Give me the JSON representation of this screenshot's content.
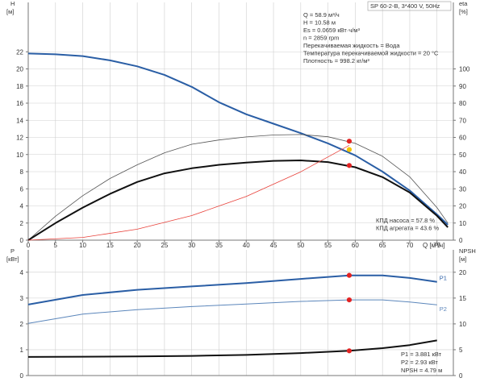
{
  "chart_data": [
    {
      "type": "line",
      "title": "SP 60-2-B, 3*400 V, 50Hz",
      "left_axis_label": "H",
      "left_axis_unit": "[м]",
      "right_axis_label": "eta",
      "right_axis_unit": "[%]",
      "x_axis_label": "Q [м³/ч]",
      "x_ticks": [
        0,
        5,
        10,
        15,
        20,
        25,
        30,
        35,
        40,
        45,
        50,
        55,
        60,
        65,
        70,
        75
      ],
      "xlim": [
        0,
        78
      ],
      "left_ticks": [
        0,
        2,
        4,
        6,
        8,
        10,
        12,
        14,
        16,
        18,
        20,
        22
      ],
      "ylim": [
        0,
        24
      ],
      "right_ticks": [
        0,
        10,
        20,
        30,
        40,
        50,
        60,
        70,
        80,
        90,
        100
      ],
      "right_ylim": [
        0,
        120
      ],
      "grid": true,
      "operating_info": [
        "Q = 58.9 м³/ч",
        "H = 10.58 м",
        "Es = 0.0659 кВт·ч/м³",
        "n = 2859 rpm",
        "Перекачиваемая жидкость = Вода",
        "Температура перекачиваемой жидкости = 20 °C",
        "Плотность = 998.2 кг/м³"
      ],
      "efficiency_info": [
        "КПД насоса = 57.8 %",
        "КПД агрегата = 43.6 %"
      ],
      "series": [
        {
          "axis": "left",
          "color": "#2a5ea5",
          "width": 2,
          "x": [
            0,
            5,
            10,
            15,
            20,
            25,
            30,
            35,
            40,
            45,
            50,
            55,
            60,
            65,
            70,
            75,
            77
          ],
          "y": [
            21.8,
            21.7,
            21.5,
            21.0,
            20.3,
            19.3,
            17.9,
            16.1,
            14.7,
            13.6,
            12.5,
            11.3,
            9.9,
            8.0,
            5.8,
            3.0,
            1.8
          ]
        },
        {
          "axis": "right",
          "color": "#555555",
          "width": 0.8,
          "x": [
            0,
            5,
            10,
            15,
            20,
            25,
            30,
            35,
            40,
            45,
            50,
            55,
            60,
            65,
            70,
            75,
            77
          ],
          "y": [
            0,
            14,
            26,
            36,
            44,
            51,
            56,
            58.5,
            60.3,
            61.4,
            61.7,
            60.4,
            56.5,
            49,
            37,
            19,
            10
          ]
        },
        {
          "axis": "right",
          "color": "#111111",
          "width": 2,
          "x": [
            0,
            5,
            10,
            15,
            20,
            25,
            30,
            35,
            40,
            45,
            50,
            55,
            60,
            65,
            70,
            75,
            77
          ],
          "y": [
            0,
            10,
            19,
            27,
            34,
            39,
            42,
            44,
            45.3,
            46.3,
            46.6,
            45.6,
            42.6,
            36.8,
            27.8,
            14.2,
            7.5
          ]
        },
        {
          "axis": "left",
          "color": "#e8413a",
          "width": 0.8,
          "x": [
            0,
            10,
            20,
            30,
            40,
            50,
            58.9
          ],
          "y": [
            0,
            0.32,
            1.28,
            2.87,
            5.11,
            7.98,
            11.08
          ]
        }
      ],
      "markers": [
        {
          "axis": "left",
          "x": 58.9,
          "y": 10.58,
          "color": "#f5c400"
        },
        {
          "axis": "right",
          "x": 58.9,
          "y": 57.8,
          "color": "#e22222"
        },
        {
          "axis": "right",
          "x": 58.9,
          "y": 43.6,
          "color": "#e22222"
        }
      ]
    },
    {
      "type": "line",
      "left_axis_label": "P",
      "left_axis_unit": "[кВт]",
      "right_axis_label": "NPSH",
      "right_axis_unit": "[м]",
      "left_ticks": [
        0,
        1,
        2,
        3,
        4
      ],
      "ylim": [
        0,
        4.4
      ],
      "right_ticks": [
        0,
        5,
        10,
        15,
        20
      ],
      "right_ylim": [
        0,
        22
      ],
      "grid": true,
      "info": [
        "P1 = 3.881 кВт",
        "P2 = 2.93 кВт",
        "NPSH = 4.79 м"
      ],
      "series": [
        {
          "name": "P1",
          "axis": "left",
          "color": "#2a5ea5",
          "width": 2,
          "x": [
            0,
            10,
            20,
            30,
            40,
            50,
            58.9,
            65,
            70,
            75
          ],
          "y": [
            2.75,
            3.12,
            3.32,
            3.45,
            3.58,
            3.74,
            3.88,
            3.88,
            3.78,
            3.63
          ]
        },
        {
          "name": "P2",
          "axis": "left",
          "color": "#5b86bb",
          "width": 1,
          "x": [
            0,
            10,
            20,
            30,
            40,
            50,
            58.9,
            65,
            70,
            75
          ],
          "y": [
            2.02,
            2.38,
            2.55,
            2.67,
            2.77,
            2.87,
            2.93,
            2.93,
            2.85,
            2.74
          ]
        },
        {
          "axis": "right",
          "color": "#111111",
          "width": 2,
          "x": [
            0,
            10,
            20,
            30,
            40,
            50,
            58.9,
            65,
            70,
            75
          ],
          "y": [
            3.6,
            3.65,
            3.7,
            3.8,
            4.0,
            4.35,
            4.79,
            5.3,
            5.9,
            6.8
          ]
        }
      ],
      "markers": [
        {
          "axis": "left",
          "x": 58.9,
          "y": 3.881,
          "color": "#e22222"
        },
        {
          "axis": "left",
          "x": 58.9,
          "y": 2.93,
          "color": "#e22222"
        },
        {
          "axis": "right",
          "x": 58.9,
          "y": 4.79,
          "color": "#e22222"
        }
      ]
    }
  ]
}
